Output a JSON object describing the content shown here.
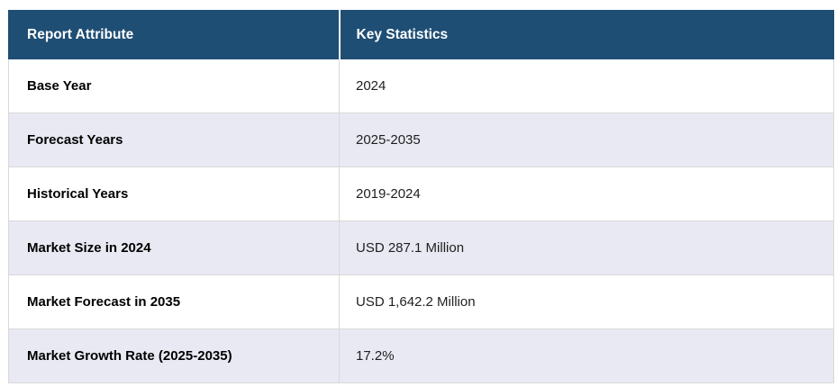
{
  "colors": {
    "header_bg": "#1f4e74",
    "header_text": "#ffffff",
    "stripe_row_bg": "#e8e9f3",
    "row_bg": "#ffffff",
    "border": "#d9d9d9",
    "attribute_text": "#000000",
    "value_text": "#1f1f1f"
  },
  "table": {
    "headers": {
      "attribute": "Report Attribute",
      "statistic": "Key Statistics"
    },
    "rows": [
      {
        "attribute": "Base Year",
        "statistic": "2024"
      },
      {
        "attribute": "Forecast Years",
        "statistic": "2025-2035"
      },
      {
        "attribute": "Historical Years",
        "statistic": "2019-2024"
      },
      {
        "attribute": "Market Size in 2024",
        "statistic": "USD 287.1 Million"
      },
      {
        "attribute": "Market Forecast in 2035",
        "statistic": "USD 1,642.2 Million"
      },
      {
        "attribute": "Market Growth Rate (2025-2035)",
        "statistic": "17.2%"
      }
    ]
  }
}
